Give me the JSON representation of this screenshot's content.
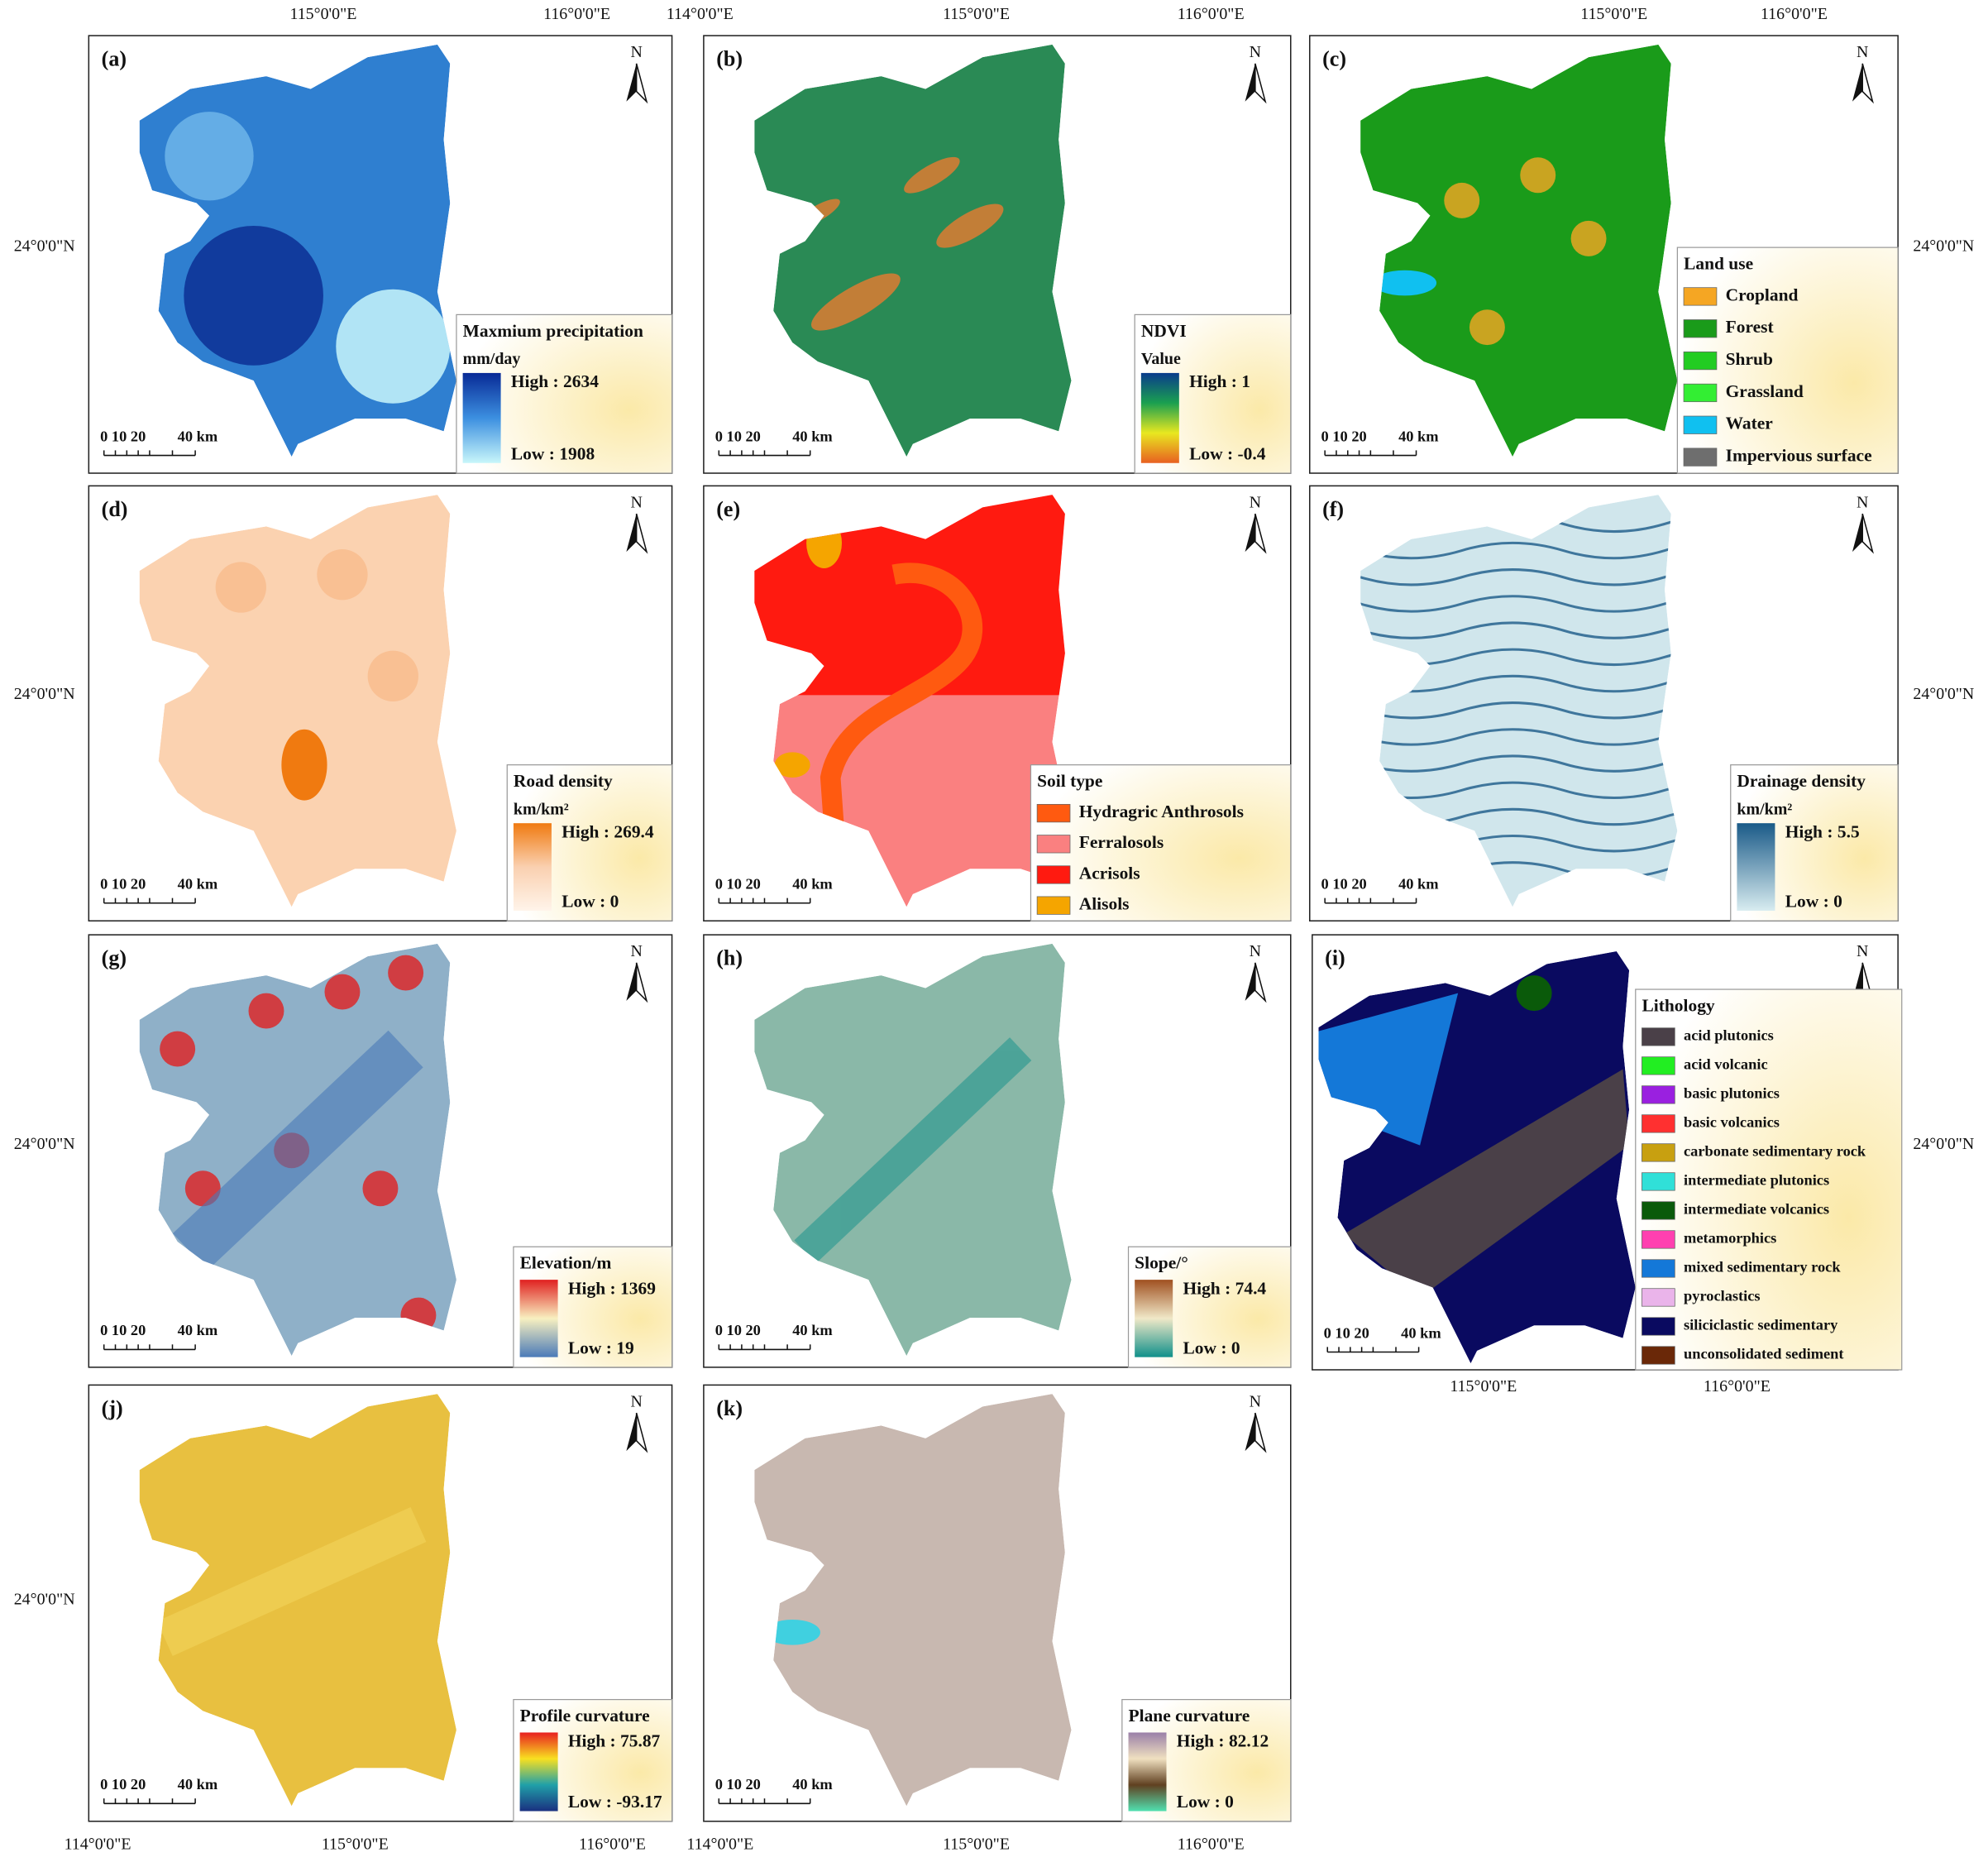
{
  "panels": [
    {
      "label": "(a)",
      "north": "N",
      "scale": [
        "0",
        "10 20",
        "40 km"
      ],
      "legend": {
        "title": "Maxmium precipitation",
        "unit": "mm/day",
        "high": "High : 2634",
        "low": "Low : 1908",
        "ramp": [
          "#082a96",
          "#3c8fe0",
          "#c8f6fa"
        ]
      }
    },
    {
      "label": "(b)",
      "north": "N",
      "scale": [
        "0",
        "10 20",
        "40 km"
      ],
      "legend": {
        "title": "NDVI",
        "unit": "Value",
        "high": "High : 1",
        "low": "Low : -0.4",
        "ramp": [
          "#0a3c8c",
          "#1aa050",
          "#e8e820",
          "#e86020"
        ]
      }
    },
    {
      "label": "(c)",
      "north": "N",
      "scale": [
        "0",
        "10 20",
        "40 km"
      ],
      "legend": {
        "title": "Land use",
        "items": [
          {
            "name": "Cropland",
            "color": "#f5a623"
          },
          {
            "name": "Forest",
            "color": "#1a9b1a"
          },
          {
            "name": "Shrub",
            "color": "#22cc22"
          },
          {
            "name": "Grassland",
            "color": "#33ee33"
          },
          {
            "name": "Water",
            "color": "#10c0f0"
          },
          {
            "name": "Impervious surface",
            "color": "#6e6e6e"
          }
        ]
      }
    },
    {
      "label": "(d)",
      "north": "N",
      "scale": [
        "0",
        "10 20",
        "40 km"
      ],
      "legend": {
        "title": "Road density",
        "unit": "km/km²",
        "high": "High : 269.4",
        "low": "Low : 0",
        "ramp": [
          "#f07a10",
          "#fad0b0",
          "#fff4ea"
        ]
      }
    },
    {
      "label": "(e)",
      "north": "N",
      "scale": [
        "0",
        "10 20",
        "40 km"
      ],
      "legend": {
        "title": "Soil type",
        "items": [
          {
            "name": "Hydragric Anthrosols",
            "color": "#ff5a10"
          },
          {
            "name": "Ferralosols",
            "color": "#fa8080"
          },
          {
            "name": "Acrisols",
            "color": "#ff1a10"
          },
          {
            "name": "Alisols",
            "color": "#f5a500"
          }
        ]
      }
    },
    {
      "label": "(f)",
      "north": "N",
      "scale": [
        "0",
        "10 20",
        "40 km"
      ],
      "legend": {
        "title": "Drainage density",
        "unit": "km/km²",
        "high": "High : 5.5",
        "low": "Low : 0",
        "ramp": [
          "#1a5a88",
          "#d8ecf0"
        ]
      }
    },
    {
      "label": "(g)",
      "north": "N",
      "scale": [
        "0",
        "10 20",
        "40 km"
      ],
      "legend": {
        "title": "Elevation/m",
        "high": "High : 1369",
        "low": "Low : 19",
        "ramp": [
          "#e02020",
          "#f8f0c0",
          "#4a7ab8"
        ]
      }
    },
    {
      "label": "(h)",
      "north": "N",
      "scale": [
        "0",
        "10 20",
        "40 km"
      ],
      "legend": {
        "title": "Slope/°",
        "high": "High : 74.4",
        "low": "Low : 0",
        "ramp": [
          "#a05020",
          "#f0e8c8",
          "#10908a"
        ]
      }
    },
    {
      "label": "(i)",
      "north": "N",
      "scale": [
        "0",
        "10 20",
        "40 km"
      ],
      "legend": {
        "title": "Lithology",
        "items": [
          {
            "name": "acid plutonics",
            "color": "#4a4048"
          },
          {
            "name": "acid volcanic",
            "color": "#22ee22"
          },
          {
            "name": "basic plutonics",
            "color": "#9a20e0"
          },
          {
            "name": "basic volcanics",
            "color": "#ff3030"
          },
          {
            "name": "carbonate sedimentary rock",
            "color": "#c8a010"
          },
          {
            "name": "intermediate plutonics",
            "color": "#30e0d8"
          },
          {
            "name": "intermediate volcanics",
            "color": "#0a5a0a"
          },
          {
            "name": "metamorphics",
            "color": "#ff40b0"
          },
          {
            "name": "mixed sedimentary rock",
            "color": "#1478d8"
          },
          {
            "name": "pyroclastics",
            "color": "#eab4ea"
          },
          {
            "name": "siliciclastic sedimentary",
            "color": "#0a0a60"
          },
          {
            "name": "unconsolidated sediment",
            "color": "#6a2808"
          }
        ]
      }
    },
    {
      "label": "(j)",
      "north": "N",
      "scale": [
        "0",
        "10 20",
        "40 km"
      ],
      "legend": {
        "title": "Profile curvature",
        "high": "High : 75.87",
        "low": "Low : -93.17",
        "ramp": [
          "#e82020",
          "#f8e020",
          "#20a0a8",
          "#1a3080"
        ]
      }
    },
    {
      "label": "(k)",
      "north": "N",
      "scale": [
        "0",
        "10 20",
        "40 km"
      ],
      "legend": {
        "title": "Plane curvature",
        "high": "High : 82.12",
        "low": "Low : 0",
        "ramp": [
          "#9a80a8",
          "#f0e0c0",
          "#604020",
          "#50e0b0"
        ]
      }
    }
  ],
  "coordinates": [
    "115°0'0\"E",
    "116°0'0\"E",
    "114°0'0\"E",
    "115°0'0\"E",
    "116°0'0\"E",
    "115°0'0\"E",
    "116°0'0\"E",
    "24°0'0\"N",
    "24°0'0\"N",
    "24°0'0\"N",
    "24°0'0\"N",
    "24°0'0\"N",
    "24°0'0\"N",
    "24°0'0\"N",
    "115°0'0\"E",
    "116°0'0\"E",
    "114°0'0\"E",
    "115°0'0\"E",
    "116°0'0\"E",
    "114°0'0\"E",
    "115°0'0\"E",
    "116°0'0\"E"
  ]
}
